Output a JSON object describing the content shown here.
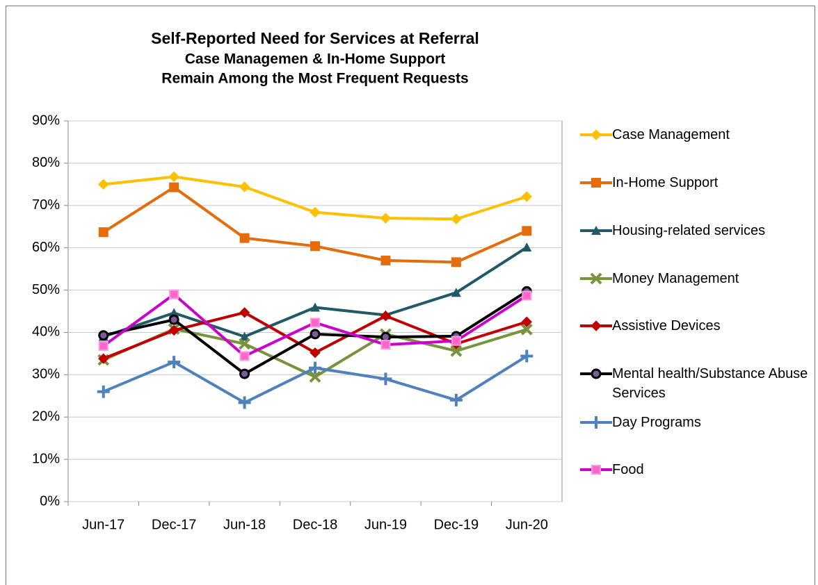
{
  "chart_data": {
    "type": "line",
    "title": "Self-Reported Need for Services at Referral",
    "subtitle": [
      "Case Managemen & In-Home Support",
      "Remain Among the Most Frequent Requests"
    ],
    "categories": [
      "Jun-17",
      "Dec-17",
      "Jun-18",
      "Dec-18",
      "Jun-19",
      "Dec-19",
      "Jun-20"
    ],
    "series": [
      {
        "name": "Case Management",
        "color": "#FFC000",
        "marker": "diamond",
        "values": [
          75,
          76.8,
          74.4,
          68.4,
          67,
          66.8,
          72.1
        ]
      },
      {
        "name": "In-Home Support",
        "color": "#E46C0A",
        "marker": "square",
        "values": [
          63.7,
          74.3,
          62.3,
          60.4,
          57,
          56.6,
          64
        ]
      },
      {
        "name": "Housing-related services",
        "color": "#215967",
        "marker": "triangle",
        "values": [
          39,
          44.6,
          39,
          45.9,
          44.1,
          49.4,
          60.1
        ]
      },
      {
        "name": "Money Management",
        "color": "#77933C",
        "marker": "x",
        "values": [
          33.5,
          40.8,
          37.3,
          29.5,
          39.6,
          35.6,
          40.7
        ]
      },
      {
        "name": "Assistive Devices",
        "color": "#C00000",
        "marker": "diamond",
        "values": [
          33.8,
          40.5,
          44.7,
          35.2,
          43.9,
          37.3,
          42.5
        ]
      },
      {
        "name": "Mental health/Substance Abuse Services",
        "color": "#000000",
        "marker": "circle",
        "values": [
          39.3,
          43,
          30.2,
          39.6,
          38.9,
          39.1,
          49.7
        ]
      },
      {
        "name": "Day Programs",
        "color": "#4F81BD",
        "marker": "plus",
        "values": [
          26,
          33,
          23.4,
          31.6,
          29,
          24,
          34.4
        ]
      },
      {
        "name": "Food",
        "color": "#CC00CC",
        "marker": "square",
        "values": [
          36.8,
          49,
          34.4,
          42.3,
          37.1,
          38,
          48.7
        ]
      }
    ],
    "ylim": [
      0,
      90
    ],
    "yticks": [
      {
        "value": 0,
        "label": "0%"
      },
      {
        "value": 10,
        "label": "10%"
      },
      {
        "value": 20,
        "label": "20%"
      },
      {
        "value": 30,
        "label": "30%"
      },
      {
        "value": 40,
        "label": "40%"
      },
      {
        "value": 50,
        "label": "50%"
      },
      {
        "value": 60,
        "label": "60%"
      },
      {
        "value": 70,
        "label": "70%"
      },
      {
        "value": 80,
        "label": "80%"
      },
      {
        "value": 90,
        "label": "90%"
      }
    ],
    "grid": true,
    "legend": "right"
  }
}
